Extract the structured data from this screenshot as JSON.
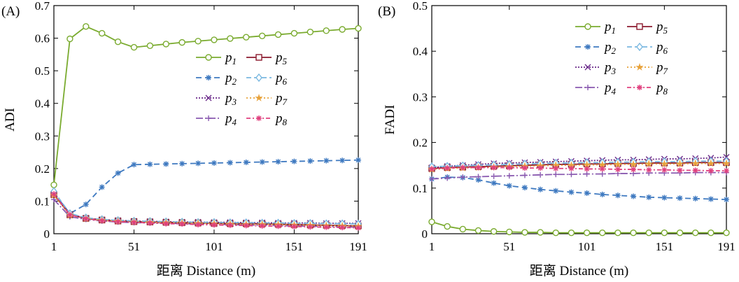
{
  "chart_data": [
    {
      "type": "line",
      "panel": "(A)",
      "ylabel": "ADI",
      "xlabel": "距离 Distance (m)",
      "xlim": [
        1,
        191
      ],
      "ylim": [
        0,
        0.7
      ],
      "xticks": [
        1,
        51,
        101,
        151,
        191
      ],
      "yticks": [
        0,
        0.1,
        0.2,
        0.3,
        0.4,
        0.5,
        0.6,
        0.7
      ],
      "x": [
        1,
        11,
        21,
        31,
        41,
        51,
        61,
        71,
        81,
        91,
        101,
        111,
        121,
        131,
        141,
        151,
        161,
        171,
        181,
        191
      ],
      "legend_position": "right",
      "series": [
        {
          "name": "p",
          "sub": "1",
          "color": "#7aab2f",
          "dash": "",
          "marker": "circle",
          "values": [
            0.15,
            0.598,
            0.636,
            0.615,
            0.589,
            0.572,
            0.577,
            0.582,
            0.587,
            0.591,
            0.595,
            0.599,
            0.603,
            0.607,
            0.611,
            0.615,
            0.619,
            0.623,
            0.627,
            0.63
          ]
        },
        {
          "name": "p",
          "sub": "2",
          "color": "#3e79c0",
          "dash": "8,5",
          "marker": "asterisk",
          "values": [
            0.125,
            0.062,
            0.09,
            0.143,
            0.186,
            0.212,
            0.213,
            0.214,
            0.215,
            0.216,
            0.217,
            0.218,
            0.219,
            0.22,
            0.221,
            0.222,
            0.223,
            0.224,
            0.225,
            0.226
          ]
        },
        {
          "name": "p",
          "sub": "3",
          "color": "#6b2a8a",
          "dash": "2,2",
          "marker": "x",
          "values": [
            0.12,
            0.06,
            0.048,
            0.043,
            0.041,
            0.039,
            0.038,
            0.037,
            0.036,
            0.036,
            0.035,
            0.035,
            0.034,
            0.034,
            0.033,
            0.033,
            0.033,
            0.032,
            0.032,
            0.032
          ]
        },
        {
          "name": "p",
          "sub": "4",
          "color": "#8a5ab0",
          "dash": "10,3,2,3",
          "marker": "plus",
          "values": [
            0.105,
            0.052,
            0.044,
            0.039,
            0.036,
            0.034,
            0.033,
            0.032,
            0.031,
            0.03,
            0.029,
            0.028,
            0.027,
            0.026,
            0.025,
            0.024,
            0.023,
            0.022,
            0.021,
            0.02
          ]
        },
        {
          "name": "p",
          "sub": "5",
          "color": "#8b1a2e",
          "dash": "",
          "marker": "square",
          "values": [
            0.12,
            0.058,
            0.047,
            0.042,
            0.039,
            0.037,
            0.036,
            0.035,
            0.034,
            0.033,
            0.032,
            0.031,
            0.031,
            0.03,
            0.029,
            0.028,
            0.027,
            0.026,
            0.025,
            0.024
          ]
        },
        {
          "name": "p",
          "sub": "6",
          "color": "#7ab8e0",
          "dash": "7,4",
          "marker": "diamond",
          "values": [
            0.13,
            0.062,
            0.049,
            0.044,
            0.041,
            0.039,
            0.038,
            0.037,
            0.036,
            0.035,
            0.035,
            0.034,
            0.034,
            0.033,
            0.033,
            0.032,
            0.032,
            0.031,
            0.031,
            0.03
          ]
        },
        {
          "name": "p",
          "sub": "7",
          "color": "#e8a23a",
          "dash": "2,3",
          "marker": "star",
          "values": [
            0.118,
            0.057,
            0.046,
            0.041,
            0.038,
            0.036,
            0.035,
            0.034,
            0.033,
            0.032,
            0.031,
            0.03,
            0.029,
            0.029,
            0.028,
            0.027,
            0.026,
            0.025,
            0.024,
            0.023
          ]
        },
        {
          "name": "p",
          "sub": "8",
          "color": "#e0407e",
          "dash": "6,3,2,3",
          "marker": "asterisk",
          "values": [
            0.122,
            0.058,
            0.046,
            0.04,
            0.037,
            0.035,
            0.033,
            0.031,
            0.03,
            0.028,
            0.027,
            0.026,
            0.025,
            0.024,
            0.023,
            0.022,
            0.021,
            0.02,
            0.019,
            0.018
          ]
        }
      ]
    },
    {
      "type": "line",
      "panel": "(B)",
      "ylabel": "FADI",
      "xlabel": "距离 Distance (m)",
      "xlim": [
        1,
        191
      ],
      "ylim": [
        0,
        0.5
      ],
      "xticks": [
        1,
        51,
        101,
        151,
        191
      ],
      "yticks": [
        0,
        0.1,
        0.2,
        0.3,
        0.4,
        0.5
      ],
      "x": [
        1,
        11,
        21,
        31,
        41,
        51,
        61,
        71,
        81,
        91,
        101,
        111,
        121,
        131,
        141,
        151,
        161,
        171,
        181,
        191
      ],
      "legend_position": "top-right",
      "series": [
        {
          "name": "p",
          "sub": "1",
          "color": "#7aab2f",
          "dash": "",
          "marker": "circle",
          "values": [
            0.026,
            0.016,
            0.01,
            0.007,
            0.005,
            0.004,
            0.003,
            0.003,
            0.002,
            0.002,
            0.002,
            0.002,
            0.002,
            0.002,
            0.002,
            0.002,
            0.002,
            0.002,
            0.002,
            0.002
          ]
        },
        {
          "name": "p",
          "sub": "2",
          "color": "#3e79c0",
          "dash": "8,5",
          "marker": "asterisk",
          "values": [
            0.12,
            0.124,
            0.123,
            0.118,
            0.111,
            0.105,
            0.101,
            0.097,
            0.094,
            0.091,
            0.089,
            0.086,
            0.084,
            0.082,
            0.08,
            0.079,
            0.078,
            0.077,
            0.076,
            0.075
          ]
        },
        {
          "name": "p",
          "sub": "3",
          "color": "#6b2a8a",
          "dash": "2,2",
          "marker": "x",
          "values": [
            0.145,
            0.148,
            0.15,
            0.152,
            0.154,
            0.155,
            0.156,
            0.157,
            0.158,
            0.159,
            0.16,
            0.161,
            0.162,
            0.162,
            0.163,
            0.164,
            0.164,
            0.165,
            0.166,
            0.168
          ]
        },
        {
          "name": "p",
          "sub": "4",
          "color": "#8a5ab0",
          "dash": "10,3,2,3",
          "marker": "plus",
          "values": [
            0.12,
            0.122,
            0.124,
            0.125,
            0.126,
            0.127,
            0.128,
            0.129,
            0.13,
            0.13,
            0.131,
            0.131,
            0.132,
            0.132,
            0.133,
            0.133,
            0.133,
            0.134,
            0.134,
            0.134
          ]
        },
        {
          "name": "p",
          "sub": "5",
          "color": "#8b1a2e",
          "dash": "",
          "marker": "square",
          "values": [
            0.143,
            0.145,
            0.146,
            0.147,
            0.148,
            0.149,
            0.15,
            0.151,
            0.152,
            0.152,
            0.153,
            0.153,
            0.154,
            0.154,
            0.155,
            0.155,
            0.155,
            0.156,
            0.156,
            0.156
          ]
        },
        {
          "name": "p",
          "sub": "6",
          "color": "#7ab8e0",
          "dash": "7,4",
          "marker": "diamond",
          "values": [
            0.147,
            0.148,
            0.149,
            0.15,
            0.151,
            0.152,
            0.153,
            0.154,
            0.155,
            0.155,
            0.156,
            0.156,
            0.157,
            0.157,
            0.158,
            0.158,
            0.158,
            0.159,
            0.159,
            0.159
          ]
        },
        {
          "name": "p",
          "sub": "7",
          "color": "#e8a23a",
          "dash": "2,3",
          "marker": "star",
          "values": [
            0.141,
            0.143,
            0.144,
            0.145,
            0.146,
            0.147,
            0.148,
            0.149,
            0.15,
            0.15,
            0.151,
            0.151,
            0.152,
            0.152,
            0.153,
            0.153,
            0.153,
            0.154,
            0.154,
            0.154
          ]
        },
        {
          "name": "p",
          "sub": "8",
          "color": "#e0407e",
          "dash": "6,3,2,3",
          "marker": "asterisk",
          "values": [
            0.142,
            0.144,
            0.145,
            0.145,
            0.145,
            0.145,
            0.144,
            0.144,
            0.143,
            0.143,
            0.142,
            0.142,
            0.141,
            0.141,
            0.14,
            0.14,
            0.139,
            0.139,
            0.138,
            0.138
          ]
        }
      ]
    }
  ]
}
